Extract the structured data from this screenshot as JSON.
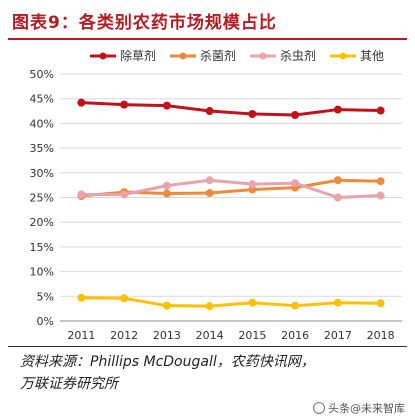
{
  "header": {
    "title": "图表9：各类别农药市场规模占比"
  },
  "chart_data": {
    "type": "line",
    "x": [
      2011,
      2012,
      2013,
      2014,
      2015,
      2016,
      2017,
      2018
    ],
    "ylim": [
      0,
      50
    ],
    "yticks": [
      "0%",
      "5%",
      "10%",
      "15%",
      "20%",
      "25%",
      "30%",
      "35%",
      "40%",
      "45%",
      "50%"
    ],
    "grid": true,
    "legend_position": "top",
    "series": [
      {
        "name": "除草剂",
        "color": "#c0121a",
        "values": [
          44.2,
          43.8,
          43.6,
          42.5,
          41.9,
          41.7,
          42.8,
          42.6
        ]
      },
      {
        "name": "杀菌剂",
        "color": "#ee8a3c",
        "values": [
          25.3,
          26.1,
          25.8,
          25.9,
          26.6,
          27.0,
          28.5,
          28.3
        ]
      },
      {
        "name": "杀虫剂",
        "color": "#e8a3ad",
        "values": [
          25.6,
          25.6,
          27.4,
          28.5,
          27.7,
          27.9,
          25.0,
          25.4
        ]
      },
      {
        "name": "其他",
        "color": "#ffc000",
        "values": [
          4.7,
          4.6,
          3.1,
          3.0,
          3.7,
          3.1,
          3.7,
          3.6
        ]
      }
    ]
  },
  "source": {
    "line1": "资料来源：Phillips McDougall，农药快讯网，",
    "line2": "万联证券研究所"
  },
  "watermark": {
    "text": "头条@未来智库"
  }
}
